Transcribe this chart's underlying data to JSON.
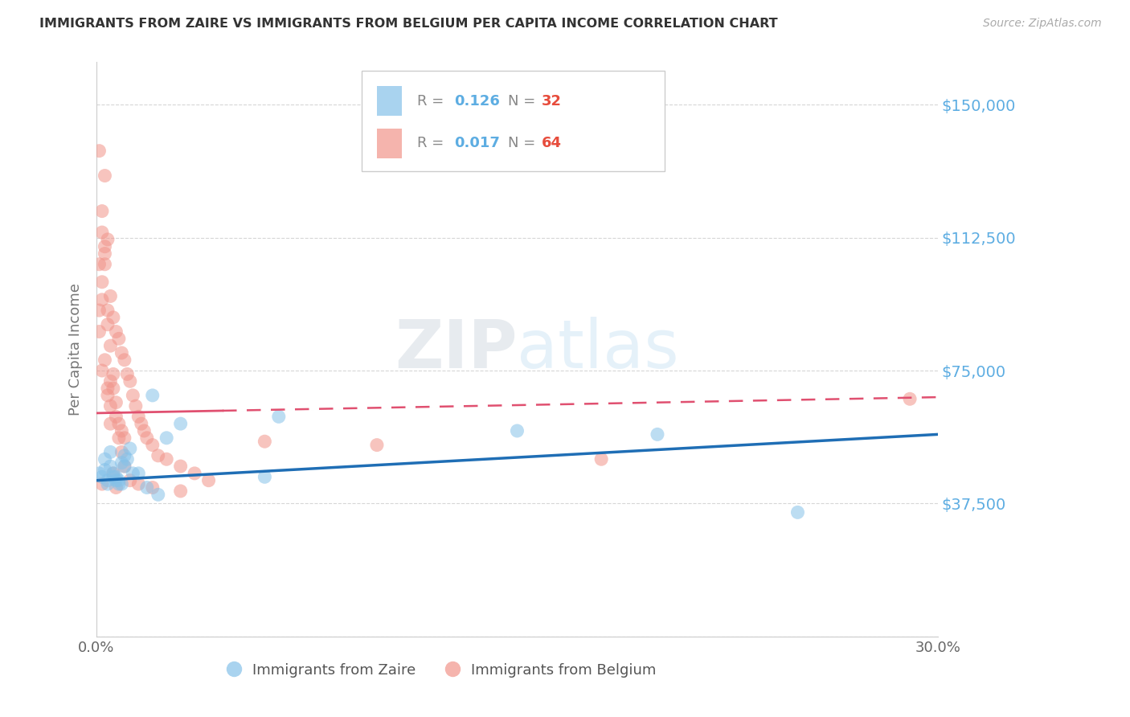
{
  "title": "IMMIGRANTS FROM ZAIRE VS IMMIGRANTS FROM BELGIUM PER CAPITA INCOME CORRELATION CHART",
  "source": "Source: ZipAtlas.com",
  "ylabel": "Per Capita Income",
  "xlim": [
    0.0,
    0.3
  ],
  "ylim": [
    0,
    162000
  ],
  "yticks": [
    0,
    37500,
    75000,
    112500,
    150000
  ],
  "ytick_labels": [
    "",
    "$37,500",
    "$75,000",
    "$112,500",
    "$150,000"
  ],
  "xtick_positions": [
    0.0,
    0.05,
    0.1,
    0.15,
    0.2,
    0.25,
    0.3
  ],
  "xtick_labels": [
    "0.0%",
    "",
    "",
    "",
    "",
    "",
    "30.0%"
  ],
  "zaire_color": "#85c1e9",
  "belgium_color": "#f1948a",
  "trend_zaire_color": "#1f6eb5",
  "trend_belgium_color": "#e05070",
  "background_color": "#ffffff",
  "grid_color": "#cccccc",
  "title_color": "#333333",
  "ytick_color": "#5dade2",
  "watermark_color": "#cde4f5",
  "R_color": "#5dade2",
  "N_color": "#e74c3c",
  "zaire_R": "0.126",
  "zaire_N": "32",
  "belgium_R": "0.017",
  "belgium_N": "64",
  "trend_zaire_x0": 0.0,
  "trend_zaire_y0": 44000,
  "trend_zaire_x1": 0.3,
  "trend_zaire_y1": 57000,
  "trend_belgium_x0": 0.0,
  "trend_belgium_y0": 63000,
  "trend_belgium_x1": 0.3,
  "trend_belgium_y1": 67500,
  "trend_belgium_solid_end": 0.045,
  "zaire_x": [
    0.001,
    0.002,
    0.003,
    0.004,
    0.005,
    0.006,
    0.007,
    0.008,
    0.009,
    0.01,
    0.012,
    0.015,
    0.018,
    0.022,
    0.004,
    0.006,
    0.008,
    0.01,
    0.013,
    0.003,
    0.005,
    0.007,
    0.009,
    0.011,
    0.025,
    0.03,
    0.06,
    0.2,
    0.25,
    0.065,
    0.15,
    0.02
  ],
  "zaire_y": [
    46000,
    45000,
    47000,
    44000,
    48000,
    45000,
    44000,
    43000,
    49000,
    51000,
    53000,
    46000,
    42000,
    40000,
    43000,
    46000,
    44000,
    48000,
    46000,
    50000,
    52000,
    45000,
    43000,
    50000,
    56000,
    60000,
    45000,
    57000,
    35000,
    62000,
    58000,
    68000
  ],
  "belgium_x": [
    0.001,
    0.001,
    0.001,
    0.002,
    0.002,
    0.002,
    0.003,
    0.003,
    0.003,
    0.004,
    0.004,
    0.004,
    0.005,
    0.005,
    0.005,
    0.006,
    0.006,
    0.007,
    0.007,
    0.008,
    0.008,
    0.009,
    0.009,
    0.01,
    0.01,
    0.011,
    0.012,
    0.013,
    0.014,
    0.015,
    0.016,
    0.017,
    0.018,
    0.02,
    0.022,
    0.025,
    0.03,
    0.035,
    0.04,
    0.002,
    0.003,
    0.004,
    0.005,
    0.006,
    0.007,
    0.008,
    0.009,
    0.01,
    0.012,
    0.015,
    0.02,
    0.03,
    0.06,
    0.1,
    0.18,
    0.29,
    0.001,
    0.002,
    0.003,
    0.004,
    0.005,
    0.006,
    0.002,
    0.007
  ],
  "belgium_y": [
    137000,
    105000,
    86000,
    120000,
    95000,
    75000,
    130000,
    105000,
    78000,
    112000,
    88000,
    68000,
    96000,
    82000,
    65000,
    90000,
    70000,
    86000,
    66000,
    84000,
    60000,
    80000,
    58000,
    78000,
    56000,
    74000,
    72000,
    68000,
    65000,
    62000,
    60000,
    58000,
    56000,
    54000,
    51000,
    50000,
    48000,
    46000,
    44000,
    100000,
    110000,
    92000,
    72000,
    74000,
    62000,
    56000,
    52000,
    48000,
    44000,
    43000,
    42000,
    41000,
    55000,
    54000,
    50000,
    67000,
    92000,
    114000,
    108000,
    70000,
    60000,
    46000,
    43000,
    42000
  ]
}
